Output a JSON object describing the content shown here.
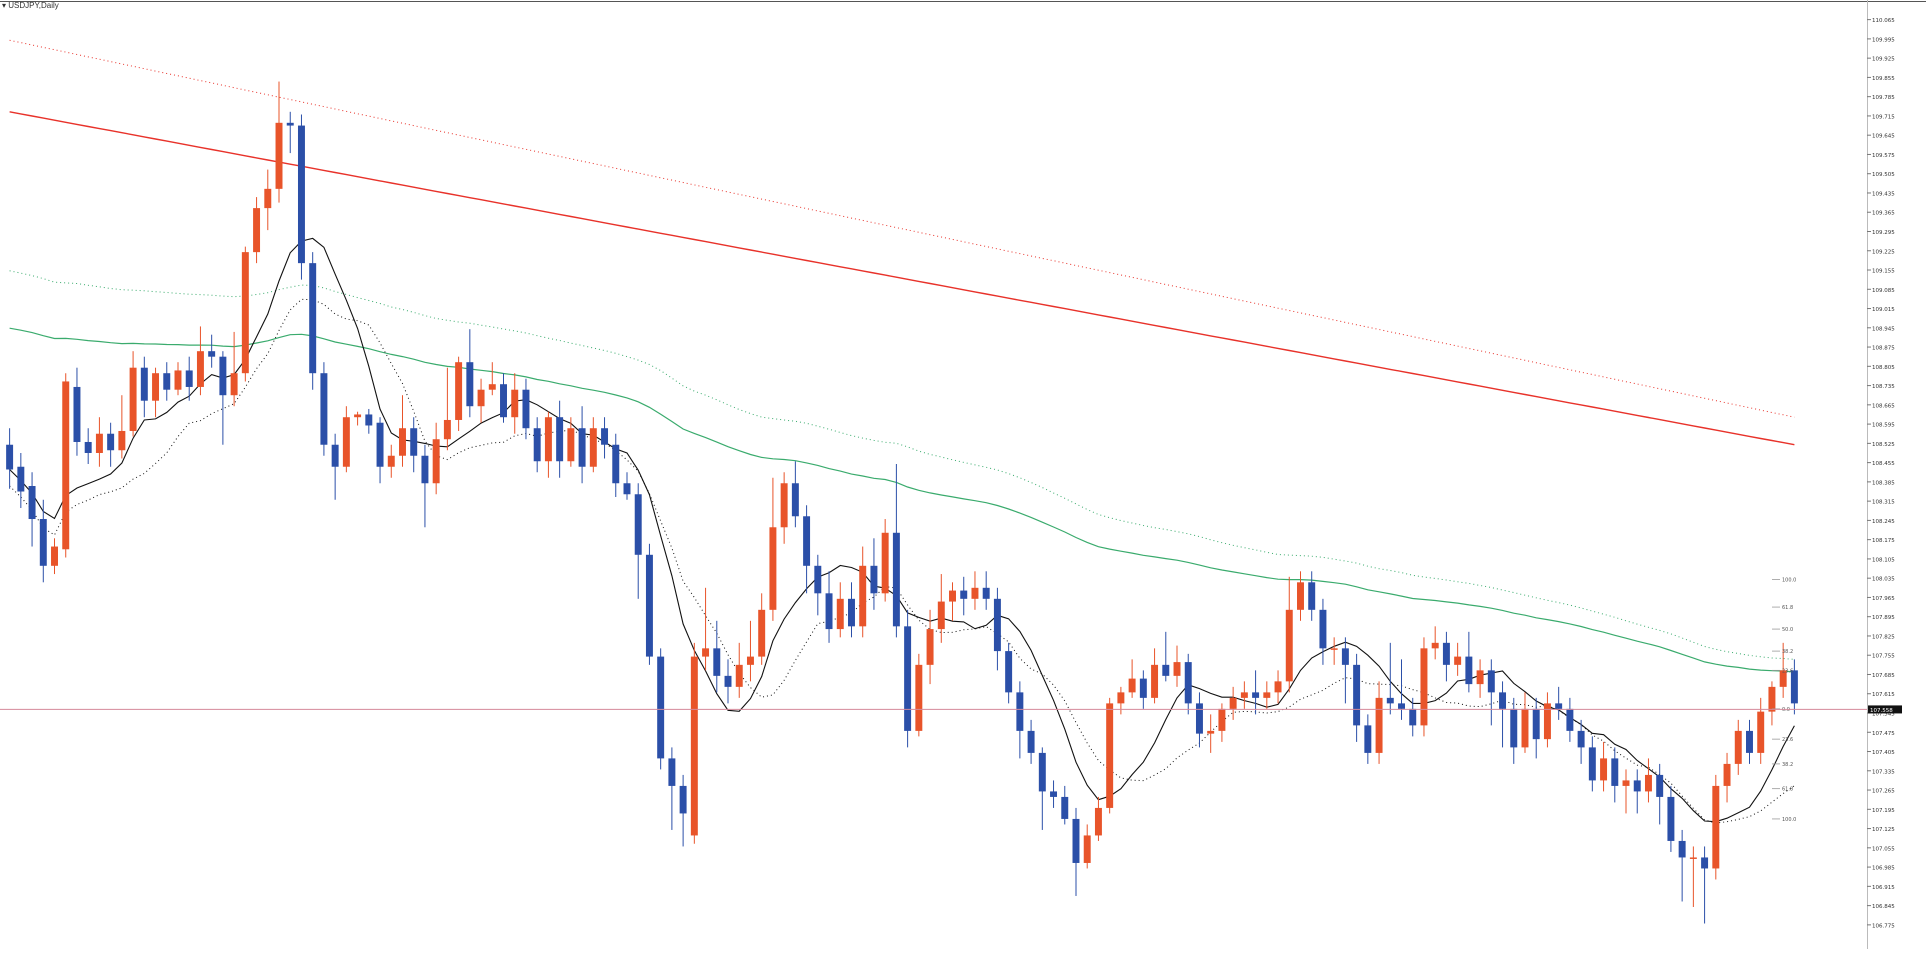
{
  "header": {
    "symbol_label": "▾ USDJPY,Daily"
  },
  "chart_data": {
    "type": "candlestick",
    "symbol": "USDJPY",
    "timeframe": "Daily",
    "ylim": [
      106.72,
      110.1
    ],
    "price_ticks": [
      "110.065",
      "109.995",
      "109.925",
      "109.855",
      "109.785",
      "109.715",
      "109.645",
      "109.575",
      "109.505",
      "109.435",
      "109.365",
      "109.295",
      "109.225",
      "109.155",
      "109.085",
      "109.015",
      "108.945",
      "108.875",
      "108.805",
      "108.735",
      "108.665",
      "108.595",
      "108.525",
      "108.455",
      "108.385",
      "108.315",
      "108.245",
      "108.175",
      "108.105",
      "108.035",
      "107.965",
      "107.895",
      "107.825",
      "107.755",
      "107.685",
      "107.615",
      "107.545",
      "107.475",
      "107.405",
      "107.335",
      "107.265",
      "107.195",
      "107.125",
      "107.055",
      "106.985",
      "106.915",
      "106.845",
      "106.775"
    ],
    "current_price_label": "107.558",
    "current_price": 107.558,
    "fib_labels": [
      "100.0",
      "61.8",
      "50.0",
      "38.2",
      "23.6",
      "0.0",
      "23.6",
      "38.2",
      "61.8",
      "100.0"
    ],
    "fib_levels": [
      108.03,
      107.93,
      107.85,
      107.77,
      107.7,
      107.56,
      107.45,
      107.36,
      107.27,
      107.16
    ],
    "colors": {
      "bull": "#e8542a",
      "bear": "#2b4fa8",
      "ma_red": "#e8322a",
      "ma_green": "#3aab6d",
      "ma_black": "#111111",
      "price_line": "#d4889a"
    },
    "candles": [
      [
        108.52,
        108.43,
        108.58,
        108.36
      ],
      [
        108.44,
        108.35,
        108.49,
        108.29
      ],
      [
        108.37,
        108.25,
        108.42,
        108.15
      ],
      [
        108.25,
        108.08,
        108.32,
        108.02
      ],
      [
        108.08,
        108.15,
        108.18,
        108.05
      ],
      [
        108.14,
        108.75,
        108.78,
        108.11
      ],
      [
        108.73,
        108.53,
        108.8,
        108.48
      ],
      [
        108.53,
        108.49,
        108.58,
        108.45
      ],
      [
        108.49,
        108.56,
        108.62,
        108.44
      ],
      [
        108.56,
        108.5,
        108.6,
        108.44
      ],
      [
        108.5,
        108.57,
        108.7,
        108.47
      ],
      [
        108.57,
        108.8,
        108.86,
        108.55
      ],
      [
        108.8,
        108.68,
        108.84,
        108.62
      ],
      [
        108.68,
        108.78,
        108.8,
        108.62
      ],
      [
        108.78,
        108.72,
        108.82,
        108.68
      ],
      [
        108.72,
        108.79,
        108.82,
        108.7
      ],
      [
        108.79,
        108.73,
        108.84,
        108.68
      ],
      [
        108.73,
        108.86,
        108.95,
        108.7
      ],
      [
        108.86,
        108.84,
        108.92,
        108.8
      ],
      [
        108.84,
        108.7,
        108.86,
        108.52
      ],
      [
        108.7,
        108.78,
        108.93,
        108.66
      ],
      [
        108.78,
        109.22,
        109.24,
        108.75
      ],
      [
        109.22,
        109.38,
        109.42,
        109.18
      ],
      [
        109.38,
        109.45,
        109.52,
        109.3
      ],
      [
        109.45,
        109.69,
        109.84,
        109.4
      ],
      [
        109.69,
        109.68,
        109.73,
        109.58
      ],
      [
        109.68,
        109.18,
        109.72,
        109.12
      ],
      [
        109.18,
        108.78,
        109.22,
        108.72
      ],
      [
        108.78,
        108.52,
        108.82,
        108.48
      ],
      [
        108.52,
        108.44,
        108.56,
        108.32
      ],
      [
        108.44,
        108.62,
        108.66,
        108.42
      ],
      [
        108.62,
        108.63,
        108.64,
        108.59
      ],
      [
        108.63,
        108.59,
        108.65,
        108.56
      ],
      [
        108.6,
        108.44,
        108.62,
        108.38
      ],
      [
        108.44,
        108.48,
        108.52,
        108.4
      ],
      [
        108.48,
        108.58,
        108.7,
        108.44
      ],
      [
        108.58,
        108.48,
        108.62,
        108.42
      ],
      [
        108.48,
        108.38,
        108.52,
        108.22
      ],
      [
        108.38,
        108.54,
        108.6,
        108.34
      ],
      [
        108.54,
        108.61,
        108.8,
        108.5
      ],
      [
        108.61,
        108.82,
        108.84,
        108.57
      ],
      [
        108.82,
        108.66,
        108.94,
        108.62
      ],
      [
        108.66,
        108.72,
        108.76,
        108.6
      ],
      [
        108.72,
        108.74,
        108.82,
        108.7
      ],
      [
        108.74,
        108.62,
        108.78,
        108.6
      ],
      [
        108.62,
        108.72,
        108.78,
        108.56
      ],
      [
        108.72,
        108.58,
        108.76,
        108.54
      ],
      [
        108.58,
        108.46,
        108.62,
        108.42
      ],
      [
        108.46,
        108.62,
        108.64,
        108.4
      ],
      [
        108.62,
        108.46,
        108.68,
        108.4
      ],
      [
        108.46,
        108.58,
        108.62,
        108.44
      ],
      [
        108.58,
        108.44,
        108.66,
        108.38
      ],
      [
        108.44,
        108.58,
        108.62,
        108.42
      ],
      [
        108.58,
        108.52,
        108.62,
        108.47
      ],
      [
        108.52,
        108.38,
        108.56,
        108.33
      ],
      [
        108.38,
        108.34,
        108.42,
        108.32
      ],
      [
        108.34,
        108.12,
        108.38,
        107.96
      ],
      [
        108.12,
        107.75,
        108.16,
        107.72
      ],
      [
        107.75,
        107.38,
        107.78,
        107.34
      ],
      [
        107.38,
        107.28,
        107.42,
        107.12
      ],
      [
        107.28,
        107.18,
        107.32,
        107.06
      ],
      [
        107.1,
        107.75,
        107.8,
        107.07
      ],
      [
        107.75,
        107.78,
        108.0,
        107.7
      ],
      [
        107.78,
        107.68,
        107.88,
        107.62
      ],
      [
        107.68,
        107.64,
        107.74,
        107.58
      ],
      [
        107.64,
        107.72,
        107.8,
        107.6
      ],
      [
        107.72,
        107.75,
        107.88,
        107.66
      ],
      [
        107.75,
        107.92,
        107.98,
        107.72
      ],
      [
        107.92,
        108.22,
        108.4,
        107.88
      ],
      [
        108.22,
        108.38,
        108.42,
        108.16
      ],
      [
        108.38,
        108.26,
        108.46,
        108.22
      ],
      [
        108.26,
        108.08,
        108.3,
        107.98
      ],
      [
        108.08,
        107.98,
        108.12,
        107.9
      ],
      [
        107.98,
        107.85,
        108.06,
        107.8
      ],
      [
        107.85,
        107.96,
        108.02,
        107.82
      ],
      [
        107.96,
        107.86,
        108.02,
        107.82
      ],
      [
        107.86,
        108.08,
        108.15,
        107.82
      ],
      [
        108.08,
        107.98,
        108.18,
        107.92
      ],
      [
        107.98,
        108.2,
        108.25,
        107.95
      ],
      [
        108.2,
        107.86,
        108.45,
        107.82
      ],
      [
        107.86,
        107.48,
        107.92,
        107.42
      ],
      [
        107.48,
        107.72,
        107.76,
        107.46
      ],
      [
        107.72,
        107.85,
        107.92,
        107.65
      ],
      [
        107.85,
        107.95,
        108.05,
        107.8
      ],
      [
        107.95,
        107.99,
        108.02,
        107.88
      ],
      [
        107.99,
        107.96,
        108.04,
        107.9
      ],
      [
        107.96,
        108.0,
        108.06,
        107.92
      ],
      [
        108.0,
        107.96,
        108.06,
        107.92
      ],
      [
        107.96,
        107.77,
        108.0,
        107.7
      ],
      [
        107.77,
        107.62,
        107.8,
        107.58
      ],
      [
        107.62,
        107.48,
        107.66,
        107.38
      ],
      [
        107.48,
        107.4,
        107.52,
        107.36
      ],
      [
        107.4,
        107.26,
        107.42,
        107.12
      ],
      [
        107.26,
        107.24,
        107.3,
        107.2
      ],
      [
        107.24,
        107.16,
        107.28,
        107.14
      ],
      [
        107.16,
        107.0,
        107.2,
        106.88
      ],
      [
        107.0,
        107.1,
        107.14,
        106.98
      ],
      [
        107.1,
        107.2,
        107.24,
        107.08
      ],
      [
        107.2,
        107.58,
        107.6,
        107.18
      ],
      [
        107.58,
        107.62,
        107.64,
        107.54
      ],
      [
        107.62,
        107.67,
        107.74,
        107.6
      ],
      [
        107.67,
        107.6,
        107.7,
        107.56
      ],
      [
        107.6,
        107.72,
        107.78,
        107.58
      ],
      [
        107.72,
        107.68,
        107.84,
        107.66
      ],
      [
        107.68,
        107.73,
        107.79,
        107.64
      ],
      [
        107.73,
        107.58,
        107.76,
        107.54
      ],
      [
        107.58,
        107.47,
        107.62,
        107.42
      ],
      [
        107.47,
        107.48,
        107.54,
        107.4
      ],
      [
        107.48,
        107.56,
        107.58,
        107.44
      ],
      [
        107.56,
        107.6,
        107.64,
        107.52
      ],
      [
        107.6,
        107.62,
        107.66,
        107.56
      ],
      [
        107.62,
        107.6,
        107.7,
        107.54
      ],
      [
        107.6,
        107.62,
        107.66,
        107.56
      ],
      [
        107.62,
        107.66,
        107.7,
        107.58
      ],
      [
        107.66,
        107.92,
        108.04,
        107.62
      ],
      [
        107.92,
        108.02,
        108.06,
        107.88
      ],
      [
        108.02,
        107.92,
        108.06,
        107.88
      ],
      [
        107.92,
        107.78,
        107.96,
        107.72
      ],
      [
        107.78,
        107.78,
        107.82,
        107.72
      ],
      [
        107.78,
        107.72,
        107.82,
        107.58
      ],
      [
        107.72,
        107.5,
        107.76,
        107.44
      ],
      [
        107.5,
        107.4,
        107.54,
        107.36
      ],
      [
        107.4,
        107.6,
        107.66,
        107.36
      ],
      [
        107.6,
        107.58,
        107.8,
        107.54
      ],
      [
        107.58,
        107.56,
        107.74,
        107.52
      ],
      [
        107.56,
        107.5,
        107.6,
        107.46
      ],
      [
        107.5,
        107.78,
        107.82,
        107.46
      ],
      [
        107.78,
        107.8,
        107.86,
        107.74
      ],
      [
        107.8,
        107.72,
        107.84,
        107.66
      ],
      [
        107.72,
        107.75,
        107.8,
        107.68
      ],
      [
        107.75,
        107.65,
        107.84,
        107.62
      ],
      [
        107.65,
        107.7,
        107.74,
        107.6
      ],
      [
        107.7,
        107.62,
        107.74,
        107.5
      ],
      [
        107.62,
        107.56,
        107.66,
        107.42
      ],
      [
        107.56,
        107.42,
        107.6,
        107.36
      ],
      [
        107.42,
        107.56,
        107.62,
        107.4
      ],
      [
        107.56,
        107.45,
        107.6,
        107.38
      ],
      [
        107.45,
        107.58,
        107.62,
        107.42
      ],
      [
        107.58,
        107.56,
        107.64,
        107.52
      ],
      [
        107.56,
        107.48,
        107.6,
        107.44
      ],
      [
        107.48,
        107.42,
        107.52,
        107.36
      ],
      [
        107.42,
        107.3,
        107.46,
        107.26
      ],
      [
        107.3,
        107.38,
        107.44,
        107.26
      ],
      [
        107.38,
        107.28,
        107.42,
        107.22
      ],
      [
        107.28,
        107.3,
        107.34,
        107.18
      ],
      [
        107.3,
        107.26,
        107.34,
        107.18
      ],
      [
        107.26,
        107.32,
        107.38,
        107.22
      ],
      [
        107.32,
        107.24,
        107.36,
        107.14
      ],
      [
        107.24,
        107.08,
        107.28,
        107.04
      ],
      [
        107.08,
        107.02,
        107.12,
        106.86
      ],
      [
        107.02,
        107.02,
        107.06,
        106.84
      ],
      [
        107.02,
        106.98,
        107.06,
        106.78
      ],
      [
        106.98,
        107.28,
        107.32,
        106.94
      ],
      [
        107.28,
        107.36,
        107.4,
        107.22
      ],
      [
        107.36,
        107.48,
        107.52,
        107.32
      ],
      [
        107.48,
        107.4,
        107.52,
        107.36
      ],
      [
        107.4,
        107.55,
        107.6,
        107.36
      ],
      [
        107.55,
        107.64,
        107.66,
        107.5
      ],
      [
        107.64,
        107.7,
        107.8,
        107.6
      ],
      [
        107.7,
        107.58,
        107.74,
        107.54
      ]
    ]
  }
}
